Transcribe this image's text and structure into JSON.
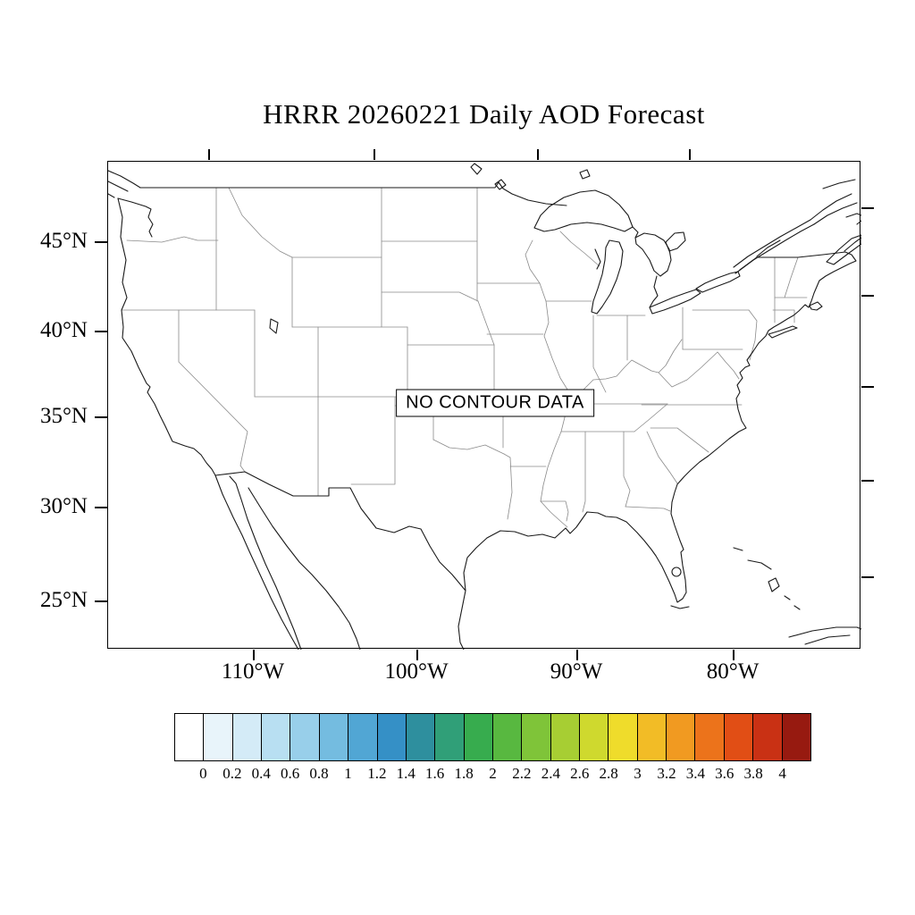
{
  "title": "HRRR 20260221 Daily AOD Forecast",
  "map": {
    "status_label": "NO CONTOUR DATA"
  },
  "axes": {
    "lat_tick_labels": [
      "45°N",
      "40°N",
      "35°N",
      "30°N",
      "25°N"
    ],
    "lon_tick_labels": [
      "110°W",
      "100°W",
      "90°W",
      "80°W"
    ]
  },
  "colorbar": {
    "tick_labels": [
      "0",
      "0.2",
      "0.4",
      "0.6",
      "0.8",
      "1",
      "1.2",
      "1.4",
      "1.6",
      "1.8",
      "2",
      "2.2",
      "2.4",
      "2.6",
      "2.8",
      "3",
      "3.2",
      "3.4",
      "3.6",
      "3.8",
      "4"
    ],
    "colors": [
      "#FFFFFF",
      "#E8F4FA",
      "#D4EBF7",
      "#B8DFF2",
      "#98CFEA",
      "#74BCE0",
      "#51A6D4",
      "#3590C6",
      "#2E8F9E",
      "#309F78",
      "#37AC4E",
      "#58B840",
      "#7FC439",
      "#A7CE33",
      "#CFD92E",
      "#EFDC2B",
      "#F2BC26",
      "#F19A21",
      "#EC731B",
      "#E14E15",
      "#C93114",
      "#971A10"
    ]
  },
  "chart_data": {
    "type": "map",
    "title": "HRRR 20260221 Daily AOD Forecast",
    "model": "HRRR",
    "run_date": "20260221",
    "variable": "Daily AOD",
    "status": "NO CONTOUR DATA",
    "region": "Continental United States",
    "lat_ticks_deg_N": [
      45,
      40,
      35,
      30,
      25
    ],
    "lon_ticks_deg_W": [
      110,
      100,
      90,
      80
    ],
    "colorbar_levels": [
      0,
      0.2,
      0.4,
      0.6,
      0.8,
      1,
      1.2,
      1.4,
      1.6,
      1.8,
      2,
      2.2,
      2.4,
      2.6,
      2.8,
      3,
      3.2,
      3.4,
      3.6,
      3.8,
      4
    ],
    "colorbar_colors": [
      "#FFFFFF",
      "#E8F4FA",
      "#D4EBF7",
      "#B8DFF2",
      "#98CFEA",
      "#74BCE0",
      "#51A6D4",
      "#3590C6",
      "#2E8F9E",
      "#309F78",
      "#37AC4E",
      "#58B840",
      "#7FC439",
      "#A7CE33",
      "#CFD92E",
      "#EFDC2B",
      "#F2BC26",
      "#F19A21",
      "#EC731B",
      "#E14E15",
      "#C93114",
      "#971A10"
    ],
    "contour_values": [],
    "legend_position": "bottom",
    "grid": false
  }
}
